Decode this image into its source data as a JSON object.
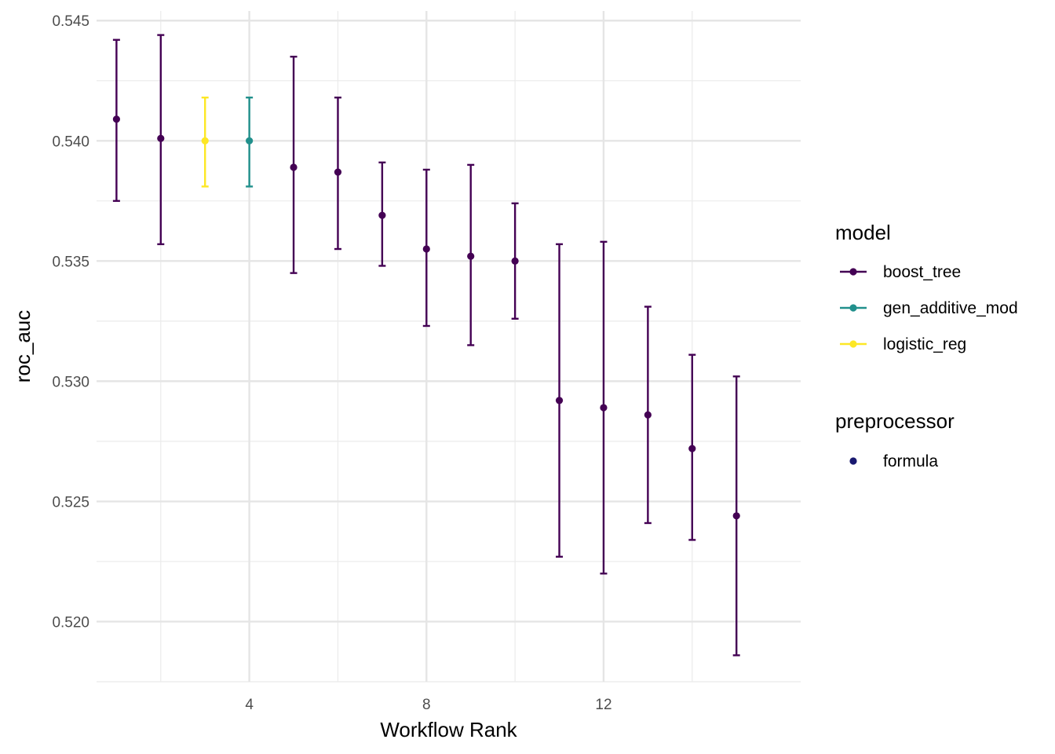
{
  "chart_data": {
    "type": "scatter",
    "xlabel": "Workflow Rank",
    "ylabel": "roc_auc",
    "xlim": [
      0.55,
      16.45
    ],
    "ylim": [
      0.5175,
      0.5454
    ],
    "x_ticks": [
      4,
      8,
      12
    ],
    "x_tick_labels": [
      "4",
      "8",
      "12"
    ],
    "y_ticks": [
      0.52,
      0.525,
      0.53,
      0.535,
      0.54,
      0.545
    ],
    "y_tick_labels": [
      "0.520",
      "0.525",
      "0.530",
      "0.535",
      "0.540",
      "0.545"
    ],
    "grid": true,
    "legend_position": "right",
    "error_bars": true,
    "series": [
      {
        "name": "boost_tree",
        "color": "#440154",
        "points": [
          {
            "x": 1,
            "y": 0.5409,
            "lower": 0.5375,
            "upper": 0.5442
          },
          {
            "x": 2,
            "y": 0.5401,
            "lower": 0.5357,
            "upper": 0.5444
          },
          {
            "x": 5,
            "y": 0.5389,
            "lower": 0.5345,
            "upper": 0.5435
          },
          {
            "x": 6,
            "y": 0.5387,
            "lower": 0.5355,
            "upper": 0.5418
          },
          {
            "x": 7,
            "y": 0.5369,
            "lower": 0.5348,
            "upper": 0.5391
          },
          {
            "x": 8,
            "y": 0.5355,
            "lower": 0.5323,
            "upper": 0.5388
          },
          {
            "x": 9,
            "y": 0.5352,
            "lower": 0.5315,
            "upper": 0.539
          },
          {
            "x": 10,
            "y": 0.535,
            "lower": 0.5326,
            "upper": 0.5374
          },
          {
            "x": 11,
            "y": 0.5292,
            "lower": 0.5227,
            "upper": 0.5357
          },
          {
            "x": 12,
            "y": 0.5289,
            "lower": 0.522,
            "upper": 0.5358
          },
          {
            "x": 13,
            "y": 0.5286,
            "lower": 0.5241,
            "upper": 0.5331
          },
          {
            "x": 14,
            "y": 0.5272,
            "lower": 0.5234,
            "upper": 0.5311
          },
          {
            "x": 15,
            "y": 0.5244,
            "lower": 0.5186,
            "upper": 0.5302
          }
        ]
      },
      {
        "name": "gen_additive_mod",
        "color": "#21908C",
        "points": [
          {
            "x": 4,
            "y": 0.54,
            "lower": 0.5381,
            "upper": 0.5418
          }
        ]
      },
      {
        "name": "logistic_reg",
        "color": "#FDE725",
        "points": [
          {
            "x": 3,
            "y": 0.54,
            "lower": 0.5381,
            "upper": 0.5418
          }
        ]
      }
    ],
    "legends": [
      {
        "title": "model",
        "items": [
          {
            "label": "boost_tree",
            "color": "#440154",
            "shape": "line-point"
          },
          {
            "label": "gen_additive_mod",
            "color": "#21908C",
            "shape": "line-point"
          },
          {
            "label": "logistic_reg",
            "color": "#FDE725",
            "shape": "line-point"
          }
        ]
      },
      {
        "title": "preprocessor",
        "items": [
          {
            "label": "formula",
            "color": "#191970",
            "shape": "point"
          }
        ]
      }
    ]
  }
}
